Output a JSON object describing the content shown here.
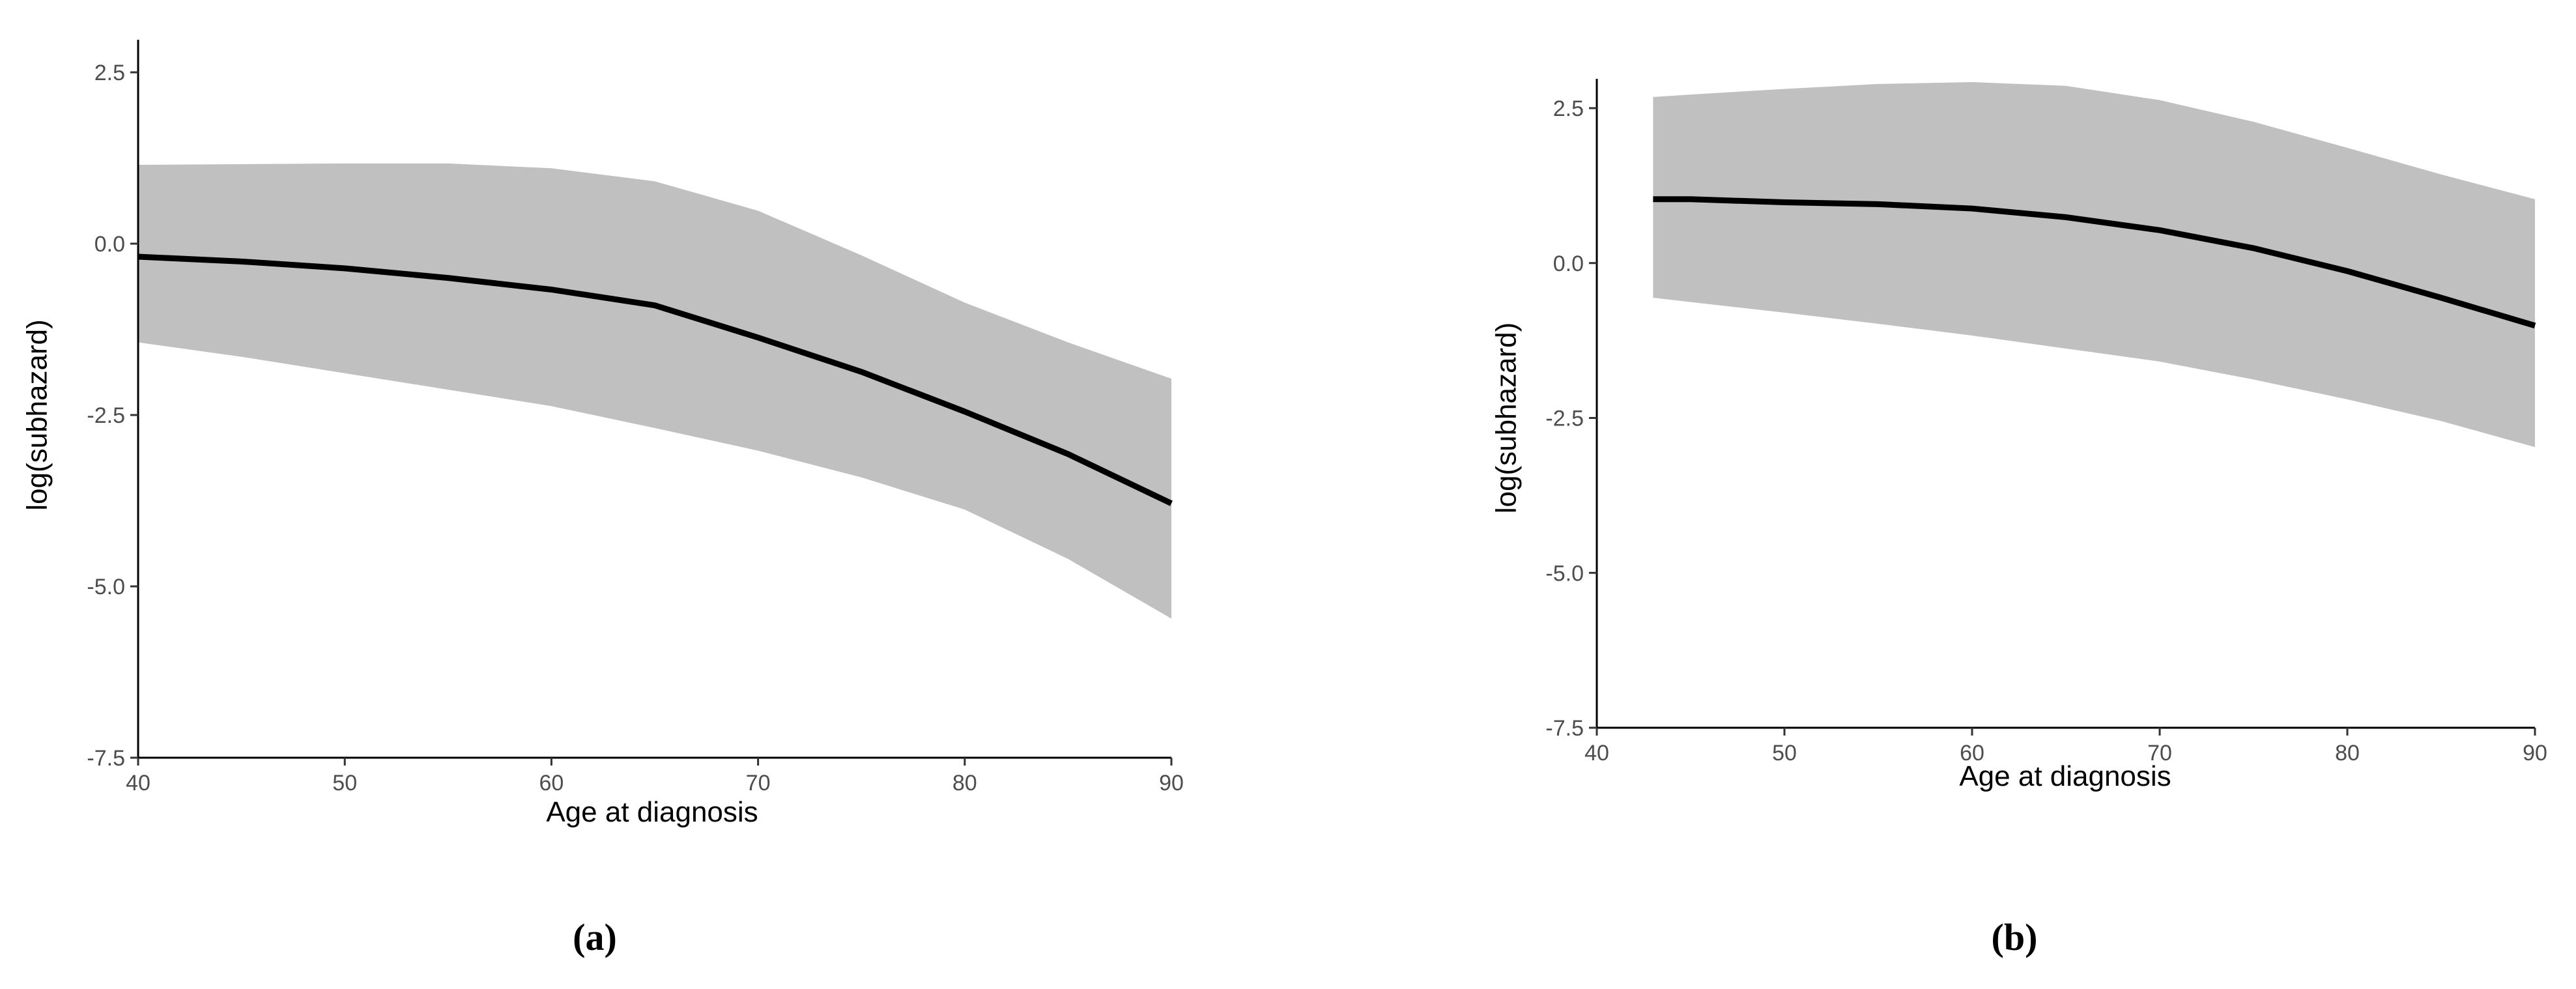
{
  "chart_data": [
    {
      "type": "line",
      "caption": "(a)",
      "xlabel": "Age at diagnosis",
      "ylabel": "log(subhazard)",
      "x": [
        40,
        45,
        50,
        55,
        60,
        65,
        70,
        75,
        80,
        85,
        90
      ],
      "values": [
        -0.19,
        -0.26,
        -0.36,
        -0.5,
        -0.67,
        -0.9,
        -1.37,
        -1.87,
        -2.45,
        -3.07,
        -3.79
      ],
      "upper": [
        1.15,
        1.16,
        1.17,
        1.17,
        1.1,
        0.91,
        0.48,
        -0.17,
        -0.86,
        -1.44,
        -1.97
      ],
      "lower": [
        -1.44,
        -1.65,
        -1.89,
        -2.13,
        -2.37,
        -2.69,
        -3.02,
        -3.41,
        -3.88,
        -4.6,
        -5.47
      ],
      "color": "#000000",
      "band_color": "#c0c0c0",
      "xlim": [
        40,
        90
      ],
      "ylim": [
        -7.5,
        2.5
      ],
      "xticks": [
        40,
        50,
        60,
        70,
        80,
        90
      ],
      "yticks": [
        -7.5,
        {
          "value": -5,
          "label": "-5.0"
        },
        -2.5,
        {
          "value": 0,
          "label": "0.0"
        },
        2.5
      ]
    },
    {
      "type": "line",
      "caption": "(b)",
      "xlabel": "Age at diagnosis",
      "ylabel": "log(subhazard)",
      "x": [
        43,
        45,
        50,
        55,
        60,
        65,
        70,
        75,
        80,
        85,
        90
      ],
      "values": [
        1.03,
        1.03,
        0.98,
        0.95,
        0.88,
        0.74,
        0.53,
        0.24,
        -0.13,
        -0.56,
        -1.01
      ],
      "upper": [
        2.68,
        2.72,
        2.81,
        2.89,
        2.92,
        2.86,
        2.63,
        2.28,
        1.86,
        1.43,
        1.03
      ],
      "lower": [
        -0.56,
        -0.63,
        -0.8,
        -0.98,
        -1.17,
        -1.38,
        -1.59,
        -1.88,
        -2.2,
        -2.55,
        -2.97
      ],
      "color": "#000000",
      "band_color": "#c0c0c0",
      "xlim": [
        40,
        90
      ],
      "ylim": [
        -7.5,
        2.5
      ],
      "xticks": [
        40,
        50,
        60,
        70,
        80,
        90
      ],
      "yticks": [
        -7.5,
        {
          "value": -5,
          "label": "-5.0"
        },
        -2.5,
        {
          "value": 0,
          "label": "0.0"
        },
        2.5
      ]
    }
  ]
}
